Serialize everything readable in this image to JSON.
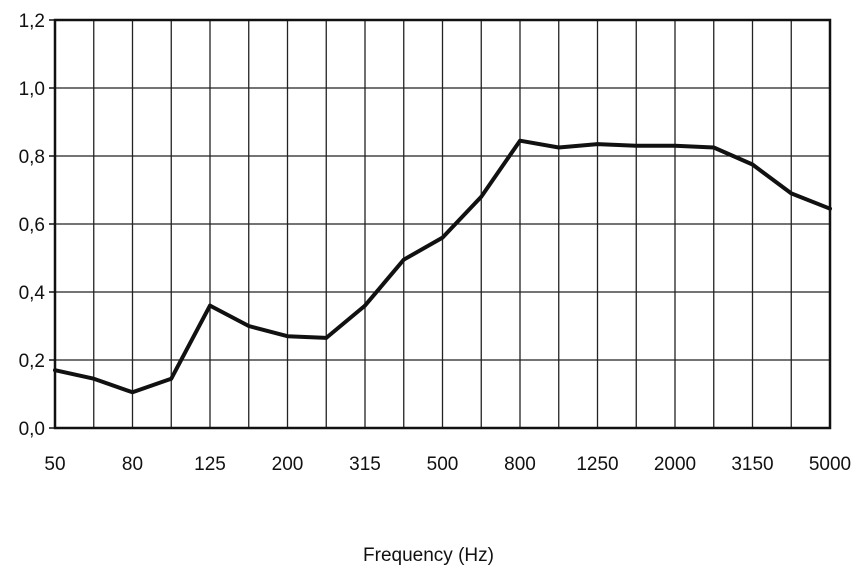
{
  "chart_data": {
    "type": "line",
    "xlabel": "Frequency (Hz)",
    "ylabel": "",
    "ylim": [
      0,
      1.2
    ],
    "y_ticks": [
      "0,0",
      "0,2",
      "0,4",
      "0,6",
      "0,8",
      "1,0",
      "1,2"
    ],
    "x_tick_labels": [
      "50",
      "80",
      "125",
      "200",
      "315",
      "500",
      "800",
      "1250",
      "2000",
      "3150",
      "5000"
    ],
    "x": [
      "50",
      "63",
      "80",
      "100",
      "125",
      "160",
      "200",
      "250",
      "315",
      "400",
      "500",
      "630",
      "800",
      "1000",
      "1250",
      "1600",
      "2000",
      "2500",
      "3150",
      "4000",
      "5000"
    ],
    "series": [
      {
        "values": [
          0.17,
          0.145,
          0.105,
          0.145,
          0.36,
          0.3,
          0.27,
          0.265,
          0.36,
          0.495,
          0.56,
          0.68,
          0.845,
          0.825,
          0.835,
          0.83,
          0.83,
          0.825,
          0.775,
          0.69,
          0.645
        ],
        "color": "#111111"
      }
    ],
    "grid": true,
    "legend": "none"
  }
}
